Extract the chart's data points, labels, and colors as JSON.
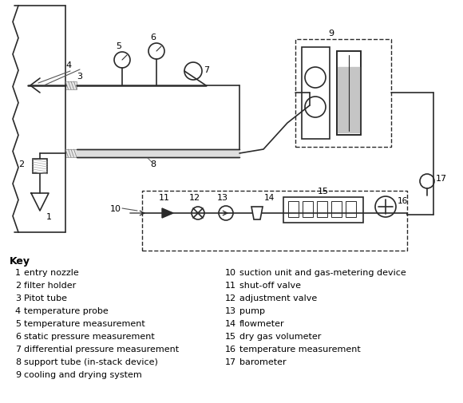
{
  "bg_color": "#ffffff",
  "line_color": "#2a2a2a",
  "key_items_left": [
    [
      1,
      "entry nozzle"
    ],
    [
      2,
      "filter holder"
    ],
    [
      3,
      "Pitot tube"
    ],
    [
      4,
      "temperature probe"
    ],
    [
      5,
      "temperature measurement"
    ],
    [
      6,
      "static pressure measurement"
    ],
    [
      7,
      "differential pressure measurement"
    ],
    [
      8,
      "support tube (in-stack device)"
    ],
    [
      9,
      "cooling and drying system"
    ]
  ],
  "key_items_right": [
    [
      10,
      "suction unit and gas-metering device"
    ],
    [
      11,
      "shut-off valve"
    ],
    [
      12,
      "adjustment valve"
    ],
    [
      13,
      "pump"
    ],
    [
      14,
      "flowmeter"
    ],
    [
      15,
      "dry gas volumeter"
    ],
    [
      16,
      "temperature measurement"
    ],
    [
      17,
      "barometer"
    ]
  ]
}
